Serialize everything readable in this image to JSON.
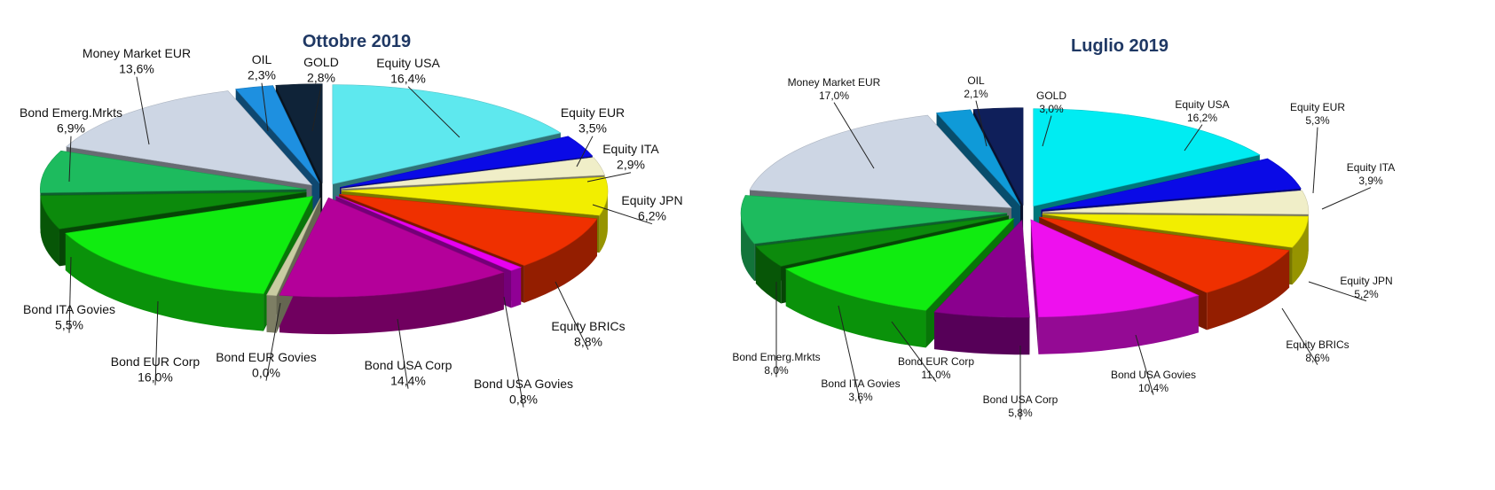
{
  "chart_data": [
    {
      "type": "pie",
      "title": "Ottobre 2019",
      "slices": [
        {
          "label": "Equity USA",
          "value": 16.4,
          "value_label": "16,4%",
          "color": "#5ee8ee"
        },
        {
          "label": "Equity EUR",
          "value": 3.5,
          "value_label": "3,5%",
          "color": "#0a0ae6"
        },
        {
          "label": "Equity ITA",
          "value": 2.9,
          "value_label": "2,9%",
          "color": "#f0eec8"
        },
        {
          "label": "Equity JPN",
          "value": 6.2,
          "value_label": "6,2%",
          "color": "#f2ee00"
        },
        {
          "label": "Equity BRICs",
          "value": 8.8,
          "value_label": "8,8%",
          "color": "#ef3000"
        },
        {
          "label": "Bond USA Govies",
          "value": 0.8,
          "value_label": "0,8%",
          "color": "#e800f0"
        },
        {
          "label": "Bond USA Corp",
          "value": 14.4,
          "value_label": "14,4%",
          "color": "#b4009a"
        },
        {
          "label": "Bond EUR Govies",
          "value": 0.0,
          "value_label": "0,0%",
          "color": "#c9cca2"
        },
        {
          "label": "Bond EUR Corp",
          "value": 16.0,
          "value_label": "16,0%",
          "color": "#10ec10"
        },
        {
          "label": "Bond ITA Govies",
          "value": 5.5,
          "value_label": "5,5%",
          "color": "#0c8a0c"
        },
        {
          "label": "Bond Emerg.Mrkts",
          "value": 6.9,
          "value_label": "6,9%",
          "color": "#1dbb5e"
        },
        {
          "label": "Money Market EUR",
          "value": 13.6,
          "value_label": "13,6%",
          "color": "#cdd6e4"
        },
        {
          "label": "OIL",
          "value": 2.3,
          "value_label": "2,3%",
          "color": "#1e90e0"
        },
        {
          "label": "GOLD",
          "value": 2.8,
          "value_label": "2,8%",
          "color": "#0f2338"
        }
      ]
    },
    {
      "type": "pie",
      "title": "Luglio 2019",
      "slices": [
        {
          "label": "Equity USA",
          "value": 16.2,
          "value_label": "16,2%",
          "color": "#00ecf2"
        },
        {
          "label": "Equity EUR",
          "value": 5.3,
          "value_label": "5,3%",
          "color": "#0a0ae6"
        },
        {
          "label": "Equity ITA",
          "value": 3.9,
          "value_label": "3,9%",
          "color": "#f0eec8"
        },
        {
          "label": "Equity JPN",
          "value": 5.2,
          "value_label": "5,2%",
          "color": "#f2ee00"
        },
        {
          "label": "Equity BRICs",
          "value": 8.6,
          "value_label": "8,6%",
          "color": "#ef3000"
        },
        {
          "label": "Bond USA Govies",
          "value": 10.4,
          "value_label": "10,4%",
          "color": "#ee10ee"
        },
        {
          "label": "Bond USA Corp",
          "value": 5.8,
          "value_label": "5,8%",
          "color": "#8a008e"
        },
        {
          "label": "Bond EUR Corp",
          "value": 11.0,
          "value_label": "11,0%",
          "color": "#10ec10"
        },
        {
          "label": "Bond ITA Govies",
          "value": 3.6,
          "value_label": "3,6%",
          "color": "#0c8a0c"
        },
        {
          "label": "Bond Emerg.Mrkts",
          "value": 8.0,
          "value_label": "8,0%",
          "color": "#1dbb5e"
        },
        {
          "label": "Money Market EUR",
          "value": 17.0,
          "value_label": "17,0%",
          "color": "#cdd6e4"
        },
        {
          "label": "OIL",
          "value": 2.1,
          "value_label": "2,1%",
          "color": "#0f9ad8"
        },
        {
          "label": "GOLD",
          "value": 3.0,
          "value_label": "3,0%",
          "color": "#0f1f5a"
        }
      ]
    }
  ]
}
